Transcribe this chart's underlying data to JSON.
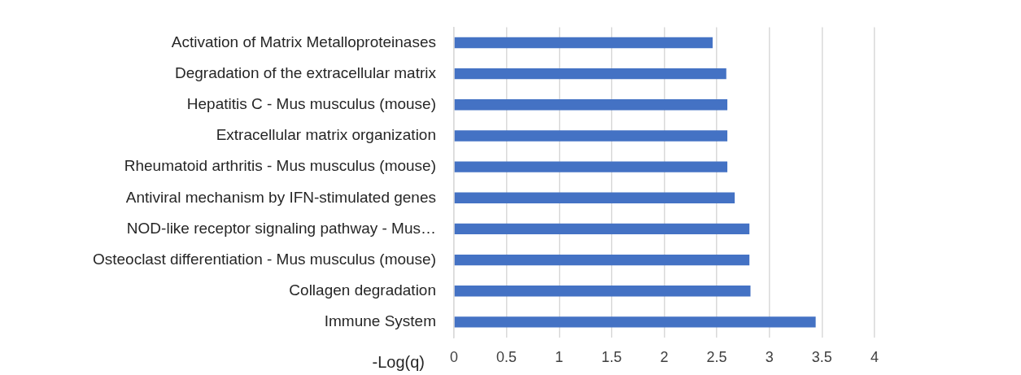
{
  "chart_data": {
    "type": "bar",
    "orientation": "horizontal",
    "xlabel": "-Log(q)",
    "categories": [
      "Activation of Matrix Metalloproteinases",
      "Degradation of the extracellular matrix",
      "Hepatitis C - Mus musculus (mouse)",
      "Extracellular matrix organization",
      "Rheumatoid arthritis - Mus musculus (mouse)",
      "Antiviral mechanism by IFN-stimulated genes",
      "NOD-like receptor signaling pathway - Mus…",
      "Osteoclast differentiation - Mus musculus (mouse)",
      "Collagen degradation",
      "Immune System"
    ],
    "values": [
      2.46,
      2.59,
      2.6,
      2.6,
      2.6,
      2.67,
      2.81,
      2.81,
      2.82,
      3.44
    ],
    "color": "#4472c4",
    "xlim": [
      0,
      4
    ],
    "xticks": [
      0,
      0.5,
      1,
      1.5,
      2,
      2.5,
      3,
      3.5,
      4
    ],
    "grid": "x",
    "legend": false
  }
}
